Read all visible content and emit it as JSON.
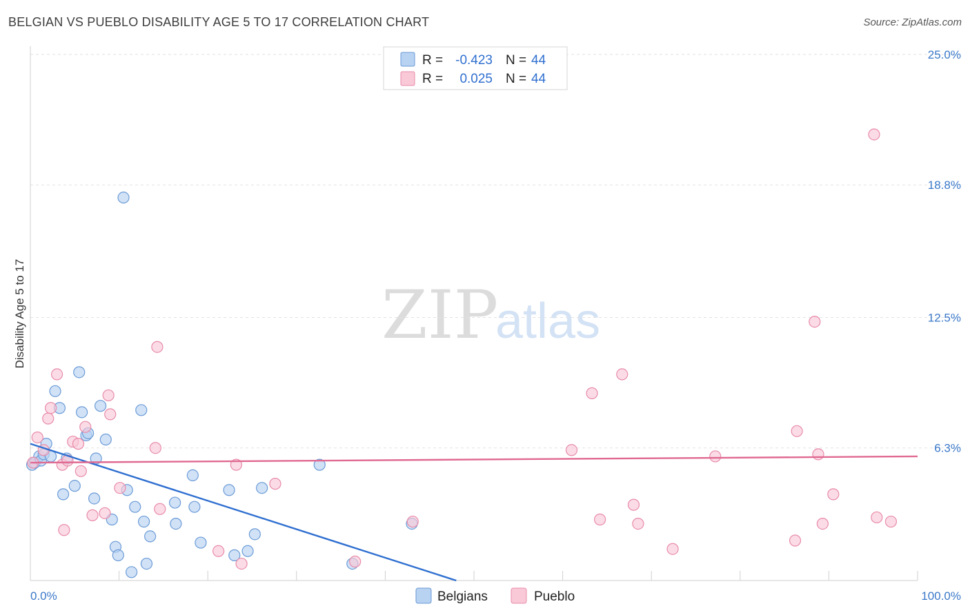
{
  "header": {
    "title": "BELGIAN VS PUEBLO DISABILITY AGE 5 TO 17 CORRELATION CHART",
    "source": "Source: ZipAtlas.com"
  },
  "watermark": {
    "zip": "ZIP",
    "atlas": "atlas"
  },
  "colors": {
    "belgians_fill": "#b8d2f2",
    "belgians_stroke": "#6a9ad6",
    "belgians_line": "#2f6fd0",
    "pueblo_fill": "#f9c9d8",
    "pueblo_stroke": "#e88aa8",
    "pueblo_line": "#e06891",
    "tick_color": "#3a78c9"
  },
  "legend": {
    "rows": [
      {
        "r_label": "R =",
        "r_value": "-0.423",
        "n_label": "N =",
        "n_value": "44"
      },
      {
        "r_label": "R =",
        "r_value": "0.025",
        "n_label": "N =",
        "n_value": "44"
      }
    ]
  },
  "chart_data": {
    "type": "scatter",
    "title": "BELGIAN VS PUEBLO DISABILITY AGE 5 TO 17 CORRELATION CHART",
    "xlabel": "",
    "ylabel": "Disability Age 5 to 17",
    "xlim": [
      0,
      100
    ],
    "ylim": [
      0,
      25
    ],
    "x_tick_labels": [
      "0.0%",
      "100.0%"
    ],
    "y_ticks": [
      6.3,
      12.5,
      18.8,
      25.0
    ],
    "y_tick_labels": [
      "6.3%",
      "12.5%",
      "18.8%",
      "25.0%"
    ],
    "grid": true,
    "legend_position": "top-center",
    "series": [
      {
        "name": "Belgians",
        "r": -0.423,
        "n": 44,
        "trend": {
          "x0": 0,
          "y0": 6.5,
          "x1": 48,
          "y1": 0
        },
        "points": [
          [
            0.2,
            5.5
          ],
          [
            0.5,
            5.6
          ],
          [
            1.0,
            5.9
          ],
          [
            1.2,
            5.7
          ],
          [
            1.5,
            6.0
          ],
          [
            1.8,
            6.5
          ],
          [
            2.3,
            5.9
          ],
          [
            2.8,
            9.0
          ],
          [
            3.3,
            8.2
          ],
          [
            3.7,
            4.1
          ],
          [
            4.1,
            5.8
          ],
          [
            5.0,
            4.5
          ],
          [
            5.5,
            9.9
          ],
          [
            5.8,
            8.0
          ],
          [
            6.3,
            6.9
          ],
          [
            6.5,
            7.0
          ],
          [
            7.2,
            3.9
          ],
          [
            7.4,
            5.8
          ],
          [
            7.9,
            8.3
          ],
          [
            8.5,
            6.7
          ],
          [
            9.2,
            2.9
          ],
          [
            9.6,
            1.6
          ],
          [
            9.9,
            1.2
          ],
          [
            10.5,
            18.2
          ],
          [
            10.9,
            4.3
          ],
          [
            11.4,
            0.4
          ],
          [
            11.8,
            3.5
          ],
          [
            12.5,
            8.1
          ],
          [
            12.8,
            2.8
          ],
          [
            13.1,
            0.8
          ],
          [
            13.5,
            2.1
          ],
          [
            16.3,
            3.7
          ],
          [
            16.4,
            2.7
          ],
          [
            18.3,
            5.0
          ],
          [
            18.5,
            3.5
          ],
          [
            19.2,
            1.8
          ],
          [
            22.4,
            4.3
          ],
          [
            23.0,
            1.2
          ],
          [
            24.5,
            1.4
          ],
          [
            25.3,
            2.2
          ],
          [
            26.1,
            4.4
          ],
          [
            32.6,
            5.5
          ],
          [
            36.3,
            0.8
          ],
          [
            43.0,
            2.7
          ]
        ]
      },
      {
        "name": "Pueblo",
        "r": 0.025,
        "n": 44,
        "trend": {
          "x0": 0,
          "y0": 5.6,
          "x1": 100,
          "y1": 5.9
        },
        "points": [
          [
            0.3,
            5.6
          ],
          [
            0.8,
            6.8
          ],
          [
            1.5,
            6.2
          ],
          [
            2.0,
            7.7
          ],
          [
            2.3,
            8.2
          ],
          [
            3.0,
            9.8
          ],
          [
            3.6,
            5.5
          ],
          [
            3.8,
            2.4
          ],
          [
            4.2,
            5.7
          ],
          [
            4.8,
            6.6
          ],
          [
            5.4,
            6.5
          ],
          [
            5.7,
            5.2
          ],
          [
            6.2,
            7.3
          ],
          [
            7.0,
            3.1
          ],
          [
            8.4,
            3.2
          ],
          [
            8.8,
            8.8
          ],
          [
            9.0,
            7.9
          ],
          [
            10.1,
            4.4
          ],
          [
            14.1,
            6.3
          ],
          [
            14.3,
            11.1
          ],
          [
            14.6,
            3.4
          ],
          [
            21.2,
            1.4
          ],
          [
            23.2,
            5.5
          ],
          [
            23.8,
            0.8
          ],
          [
            27.6,
            4.6
          ],
          [
            36.6,
            0.9
          ],
          [
            43.1,
            2.8
          ],
          [
            61.0,
            6.2
          ],
          [
            63.3,
            8.9
          ],
          [
            64.2,
            2.9
          ],
          [
            66.7,
            9.8
          ],
          [
            68.0,
            3.6
          ],
          [
            68.5,
            2.7
          ],
          [
            72.4,
            1.5
          ],
          [
            77.2,
            5.9
          ],
          [
            86.2,
            1.9
          ],
          [
            86.4,
            7.1
          ],
          [
            88.4,
            12.3
          ],
          [
            88.8,
            6.0
          ],
          [
            89.3,
            2.7
          ],
          [
            90.5,
            4.1
          ],
          [
            95.1,
            21.2
          ],
          [
            95.4,
            3.0
          ],
          [
            97.0,
            2.8
          ]
        ]
      }
    ]
  }
}
